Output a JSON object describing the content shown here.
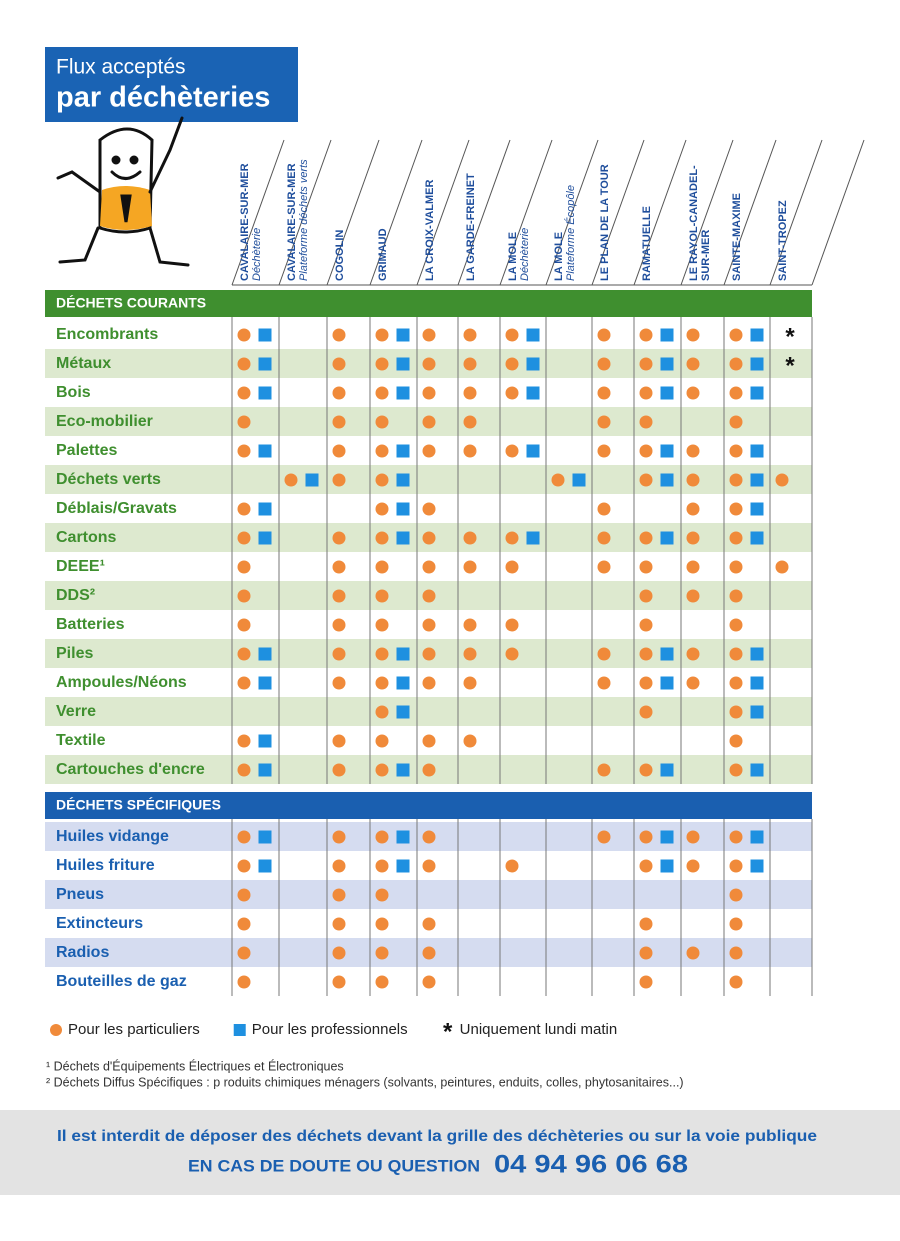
{
  "title": {
    "line1": "Flux acceptés",
    "line2": "par déchèteries"
  },
  "columns": [
    {
      "name": [
        "CAVALAIRE-SUR-MER"
      ],
      "sub": "Déchèterie"
    },
    {
      "name": [
        "CAVALAIRE-SUR-MER"
      ],
      "sub": "Plateforme déchets verts",
      "sub_color": "#7ab648"
    },
    {
      "name": [
        "COGOLIN"
      ]
    },
    {
      "name": [
        "GRIMAUD"
      ]
    },
    {
      "name": [
        "LA CROIX-VALMER"
      ]
    },
    {
      "name": [
        "LA GARDE-FREINET"
      ]
    },
    {
      "name": [
        "LA MOLE"
      ],
      "sub": "Déchèterie"
    },
    {
      "name": [
        "LA MOLE"
      ],
      "sub": "Plateforme Écopôle",
      "sub_color": "#7ab648"
    },
    {
      "name": [
        "LE PLAN DE LA TOUR"
      ]
    },
    {
      "name": [
        "RAMATUELLE"
      ]
    },
    {
      "name": [
        "LE RAYOL-CANADEL-",
        "SUR-MER"
      ]
    },
    {
      "name": [
        "SAINTE-MAXIME"
      ]
    },
    {
      "name": [
        "SAINT-TROPEZ"
      ]
    }
  ],
  "sections": [
    {
      "title": "DÉCHETS COURANTS",
      "color": "#3f8f2f",
      "shade": "#dde9cf",
      "label_color": "#3f8f2f",
      "rows": [
        {
          "label": "Encombrants",
          "cells": [
            "●■",
            null,
            "●",
            "●■",
            "●",
            "●",
            "●■",
            null,
            "●",
            "●■",
            "●",
            "●■",
            "*"
          ]
        },
        {
          "label": "Métaux",
          "cells": [
            "●■",
            null,
            "●",
            "●■",
            "●",
            "●",
            "●■",
            null,
            "●",
            "●■",
            "●",
            "●■",
            "*"
          ]
        },
        {
          "label": "Bois",
          "cells": [
            "●■",
            null,
            "●",
            "●■",
            "●",
            "●",
            "●■",
            null,
            "●",
            "●■",
            "●",
            "●■",
            null
          ]
        },
        {
          "label": "Eco-mobilier",
          "cells": [
            "●",
            null,
            "●",
            "●",
            "●",
            "●",
            null,
            null,
            "●",
            "●",
            null,
            "●",
            null
          ]
        },
        {
          "label": "Palettes",
          "cells": [
            "●■",
            null,
            "●",
            "●■",
            "●",
            "●",
            "●■",
            null,
            "●",
            "●■",
            "●",
            "●■",
            null
          ]
        },
        {
          "label": "Déchets verts",
          "cells": [
            null,
            "●■",
            "●",
            "●■",
            null,
            null,
            null,
            "●■",
            null,
            "●■",
            "●",
            "●■",
            "●"
          ]
        },
        {
          "label": "Déblais/Gravats",
          "cells": [
            "●■",
            null,
            null,
            "●■",
            "●",
            null,
            null,
            null,
            "●",
            null,
            "●",
            "●■",
            null
          ]
        },
        {
          "label": "Cartons",
          "cells": [
            "●■",
            null,
            "●",
            "●■",
            "●",
            "●",
            "●■",
            null,
            "●",
            "●■",
            "●",
            "●■",
            null
          ]
        },
        {
          "label": "DEEE¹",
          "cells": [
            "●",
            null,
            "●",
            "●",
            "●",
            "●",
            "●",
            null,
            "●",
            "●",
            "●",
            "●",
            "●"
          ]
        },
        {
          "label": "DDS²",
          "cells": [
            "●",
            null,
            "●",
            "●",
            "●",
            null,
            null,
            null,
            null,
            "●",
            "●",
            "●",
            null
          ]
        },
        {
          "label": "Batteries",
          "cells": [
            "●",
            null,
            "●",
            "●",
            "●",
            "●",
            "●",
            null,
            null,
            "●",
            null,
            "●",
            null
          ]
        },
        {
          "label": "Piles",
          "cells": [
            "●■",
            null,
            "●",
            "●■",
            "●",
            "●",
            "●",
            null,
            "●",
            "●■",
            "●",
            "●■",
            null
          ]
        },
        {
          "label": "Ampoules/Néons",
          "cells": [
            "●■",
            null,
            "●",
            "●■",
            "●",
            "●",
            null,
            null,
            "●",
            "●■",
            "●",
            "●■",
            null
          ]
        },
        {
          "label": "Verre",
          "cells": [
            null,
            null,
            null,
            "●■",
            null,
            null,
            null,
            null,
            null,
            "●",
            null,
            "●■",
            null
          ]
        },
        {
          "label": "Textile",
          "cells": [
            "●■",
            null,
            "●",
            "●",
            "●",
            "●",
            null,
            null,
            null,
            null,
            null,
            "●",
            null
          ]
        },
        {
          "label": "Cartouches d'encre",
          "cells": [
            "●■",
            null,
            "●",
            "●■",
            "●",
            null,
            null,
            null,
            "●",
            "●■",
            null,
            "●■",
            null
          ]
        }
      ]
    },
    {
      "title": "DÉCHETS SPÉCIFIQUES",
      "color": "#1a5fb0",
      "shade": "#d5dcf0",
      "label_color": "#1a5fb0",
      "rows": [
        {
          "label": "Huiles vidange",
          "cells": [
            "●■",
            null,
            "●",
            "●■",
            "●",
            null,
            null,
            null,
            "●",
            "●■",
            "●",
            "●■",
            null
          ]
        },
        {
          "label": "Huiles friture",
          "cells": [
            "●■",
            null,
            "●",
            "●■",
            "●",
            null,
            "●",
            null,
            null,
            "●■",
            "●",
            "●■",
            null
          ]
        },
        {
          "label": "Pneus",
          "cells": [
            "●",
            null,
            "●",
            "●",
            null,
            null,
            null,
            null,
            null,
            null,
            null,
            "●",
            null
          ]
        },
        {
          "label": "Extincteurs",
          "cells": [
            "●",
            null,
            "●",
            "●",
            "●",
            null,
            null,
            null,
            null,
            "●",
            null,
            "●",
            null
          ]
        },
        {
          "label": "Radios",
          "cells": [
            "●",
            null,
            "●",
            "●",
            "●",
            null,
            null,
            null,
            null,
            "●",
            "●",
            "●",
            null
          ]
        },
        {
          "label": "Bouteilles de gaz",
          "cells": [
            "●",
            null,
            "●",
            "●",
            "●",
            null,
            null,
            null,
            null,
            "●",
            null,
            "●",
            null
          ]
        }
      ]
    }
  ],
  "legend": [
    {
      "symbol": "●",
      "label": "Pour les particuliers",
      "color": "#f08a3a"
    },
    {
      "symbol": "■",
      "label": "Pour les professionnels",
      "color": "#1e90e0"
    },
    {
      "symbol": "*",
      "label": "Uniquement lundi matin",
      "color": "#111"
    }
  ],
  "footnotes": [
    "¹ Déchets d'Équipements Électriques et Électroniques",
    "² Déchets Diffus Spécifiques : p roduits chimiques ménagers (solvants, peintures, enduits, colles, phytosanitaires...)"
  ],
  "footer": {
    "notice": "Il est interdit de déposer des déchets devant la grille des déchèteries ou sur la voie publique",
    "contact_label": "EN CAS DE DOUTE OU QUESTION",
    "phone": "04 94 96 06 68"
  }
}
